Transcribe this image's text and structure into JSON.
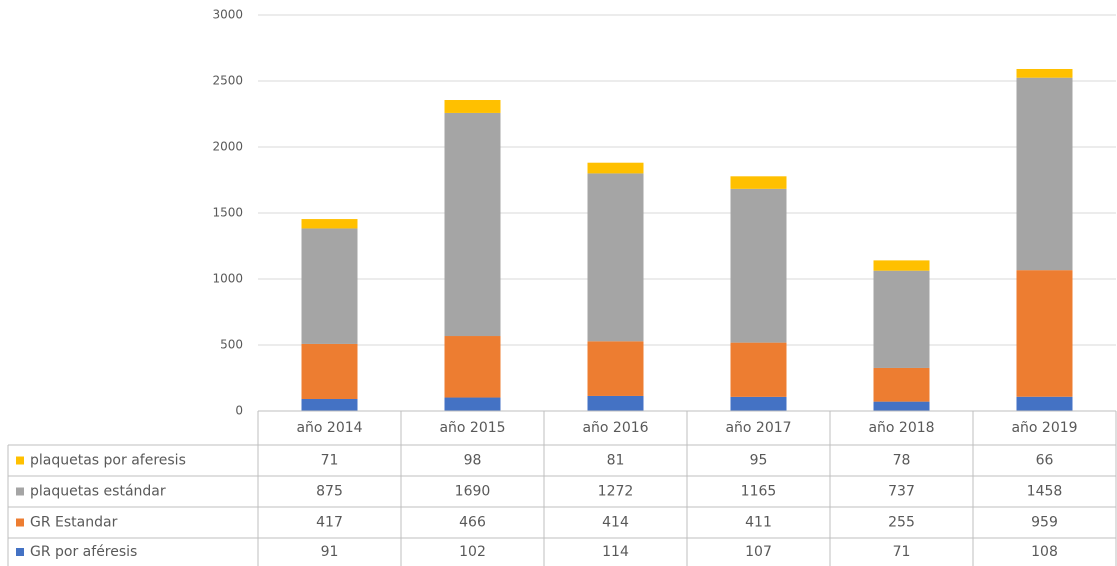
{
  "chart_data": {
    "type": "bar",
    "stacked": true,
    "categories": [
      "año 2014",
      "año 2015",
      "año 2016",
      "año 2017",
      "año 2018",
      "año 2019"
    ],
    "series": [
      {
        "name": "GR por aféresis",
        "color": "#4472c4",
        "values": [
          91,
          102,
          114,
          107,
          71,
          108
        ]
      },
      {
        "name": "GR Estandar",
        "color": "#ed7d31",
        "values": [
          417,
          466,
          414,
          411,
          255,
          959
        ]
      },
      {
        "name": "plaquetas estándar",
        "color": "#a5a5a5",
        "values": [
          875,
          1690,
          1272,
          1165,
          737,
          1458
        ]
      },
      {
        "name": "plaquetas por aferesis",
        "color": "#ffc000",
        "values": [
          71,
          98,
          81,
          95,
          78,
          66
        ]
      }
    ],
    "ylim": [
      0,
      3000
    ],
    "yticks": [
      0,
      500,
      1000,
      1500,
      2000,
      2500,
      3000
    ],
    "grid": true
  }
}
